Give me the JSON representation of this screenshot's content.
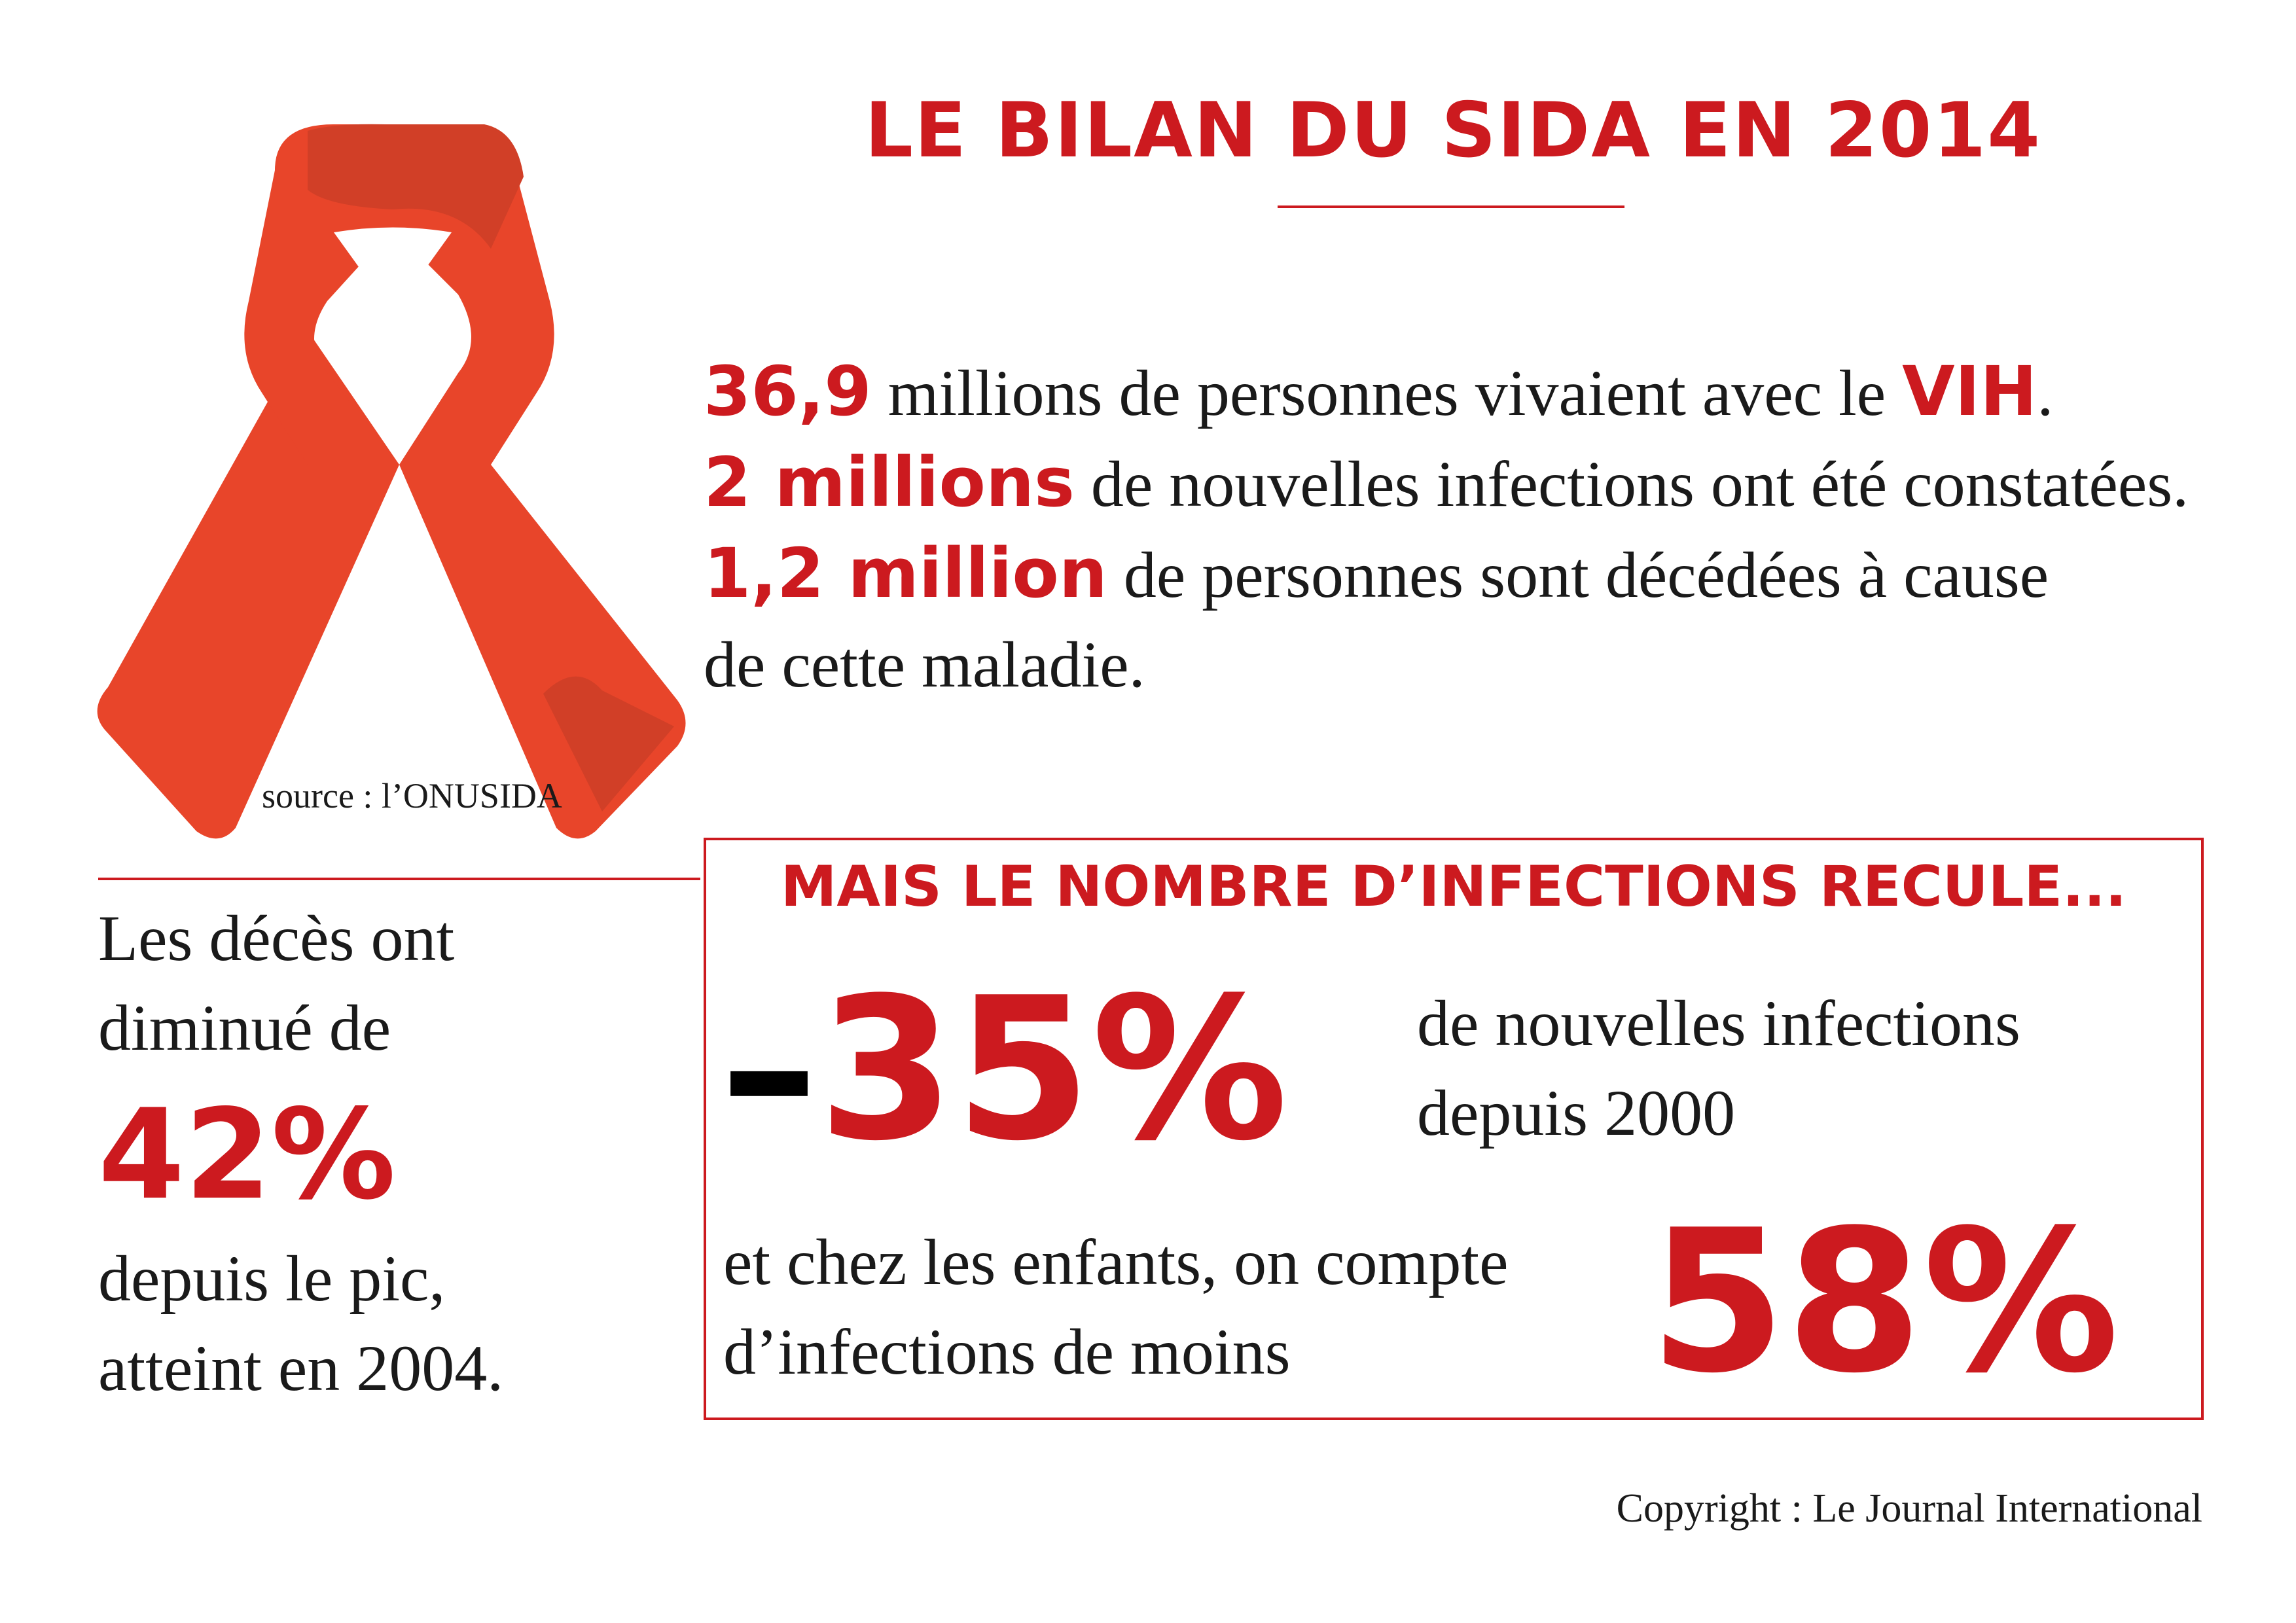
{
  "header": {
    "title": "LE BILAN DU SIDA EN 2014"
  },
  "logo": {
    "icon": "aids-red-ribbon-icon",
    "color": "#e8452a",
    "shade": "#d13f27"
  },
  "stats": {
    "line1": {
      "num": "36,9",
      "text": " millions de personnes vivaient avec le ",
      "emph": "VIH",
      "end": "."
    },
    "line2": {
      "num": "2 millions",
      "text": " de nouvelles infections ont été constatées."
    },
    "line3": {
      "num": "1,2 million",
      "text": " de personnes sont décédées à cause"
    },
    "line4": {
      "text": "de cette maladie."
    }
  },
  "source": "source : l’ONUSIDA",
  "deaths": {
    "line1": "Les décès ont",
    "line2": "diminué de",
    "value": "42%",
    "line3": "depuis le pic,",
    "line4": "atteint en 2004."
  },
  "infections": {
    "title": "MAIS LE NOMBRE D’INFECTIONS RECULE...",
    "new_dash": "–",
    "new_value": "35%",
    "new_line1": "de nouvelles infections",
    "new_line2": "depuis 2000",
    "kids_line1": "et chez les enfants, on compte",
    "kids_line2": "d’infections de moins",
    "kids_value": "58%"
  },
  "footer": {
    "copyright": "Copyright : Le Journal International"
  },
  "colors": {
    "accent": "#cc1a1f",
    "text": "#1a1a1a"
  }
}
